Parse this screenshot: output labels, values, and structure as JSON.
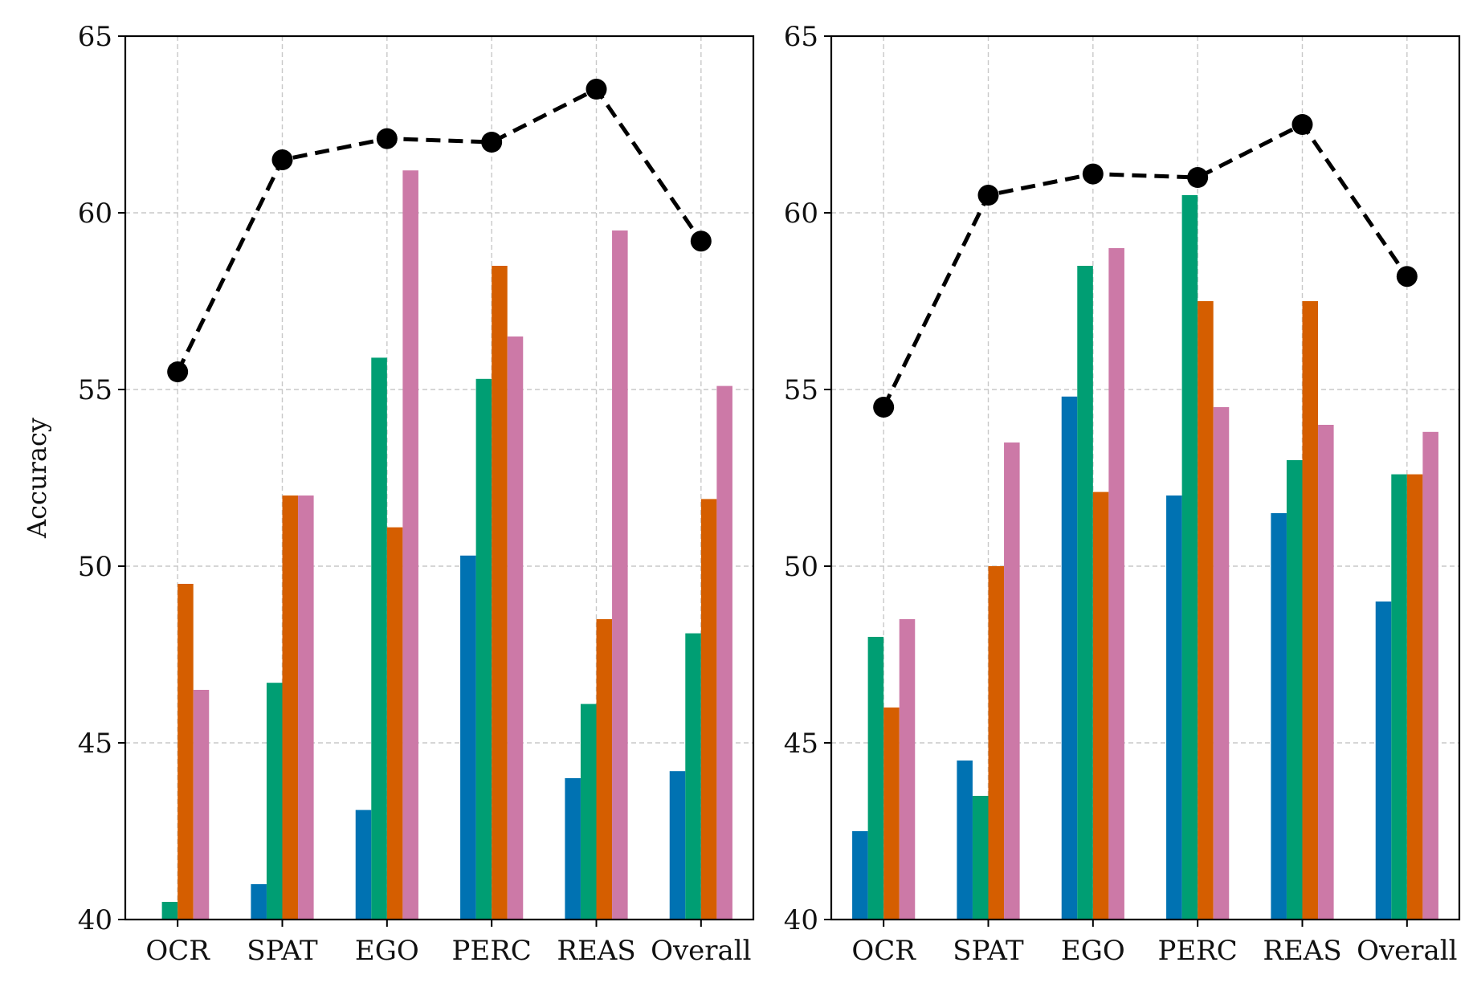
{
  "colors": {
    "series": [
      "#0072B2",
      "#009E73",
      "#D55E00",
      "#CC79A7"
    ],
    "line": "#000000",
    "grid": "#c8c8c8"
  },
  "chart_data": [
    {
      "type": "bar",
      "title": "",
      "xlabel": "",
      "ylabel": "Accuracy",
      "ylim": [
        40,
        65
      ],
      "yticks": [
        40,
        45,
        50,
        55,
        60,
        65
      ],
      "grid": true,
      "categories": [
        "OCR",
        "SPAT",
        "EGO",
        "PERC",
        "REAS",
        "Overall"
      ],
      "series": [
        {
          "values": [
            39.8,
            41.0,
            43.1,
            50.3,
            44.0,
            44.2
          ]
        },
        {
          "values": [
            40.5,
            46.7,
            55.9,
            55.3,
            46.1,
            48.1
          ]
        },
        {
          "values": [
            49.5,
            52.0,
            51.1,
            58.5,
            48.5,
            51.9
          ]
        },
        {
          "values": [
            46.5,
            52.0,
            61.2,
            56.5,
            59.5,
            55.1
          ]
        }
      ],
      "line_series": {
        "style": "dashed",
        "marker": "circle",
        "values": [
          55.5,
          61.5,
          62.1,
          62.0,
          63.5,
          59.2
        ]
      }
    },
    {
      "type": "bar",
      "title": "",
      "xlabel": "",
      "ylabel": "",
      "ylim": [
        40,
        65
      ],
      "yticks": [
        40,
        45,
        50,
        55,
        60,
        65
      ],
      "grid": true,
      "categories": [
        "OCR",
        "SPAT",
        "EGO",
        "PERC",
        "REAS",
        "Overall"
      ],
      "series": [
        {
          "values": [
            42.5,
            44.5,
            54.8,
            52.0,
            51.5,
            49.0
          ]
        },
        {
          "values": [
            48.0,
            43.5,
            58.5,
            60.5,
            53.0,
            52.6
          ]
        },
        {
          "values": [
            46.0,
            50.0,
            52.1,
            57.5,
            57.5,
            52.6
          ]
        },
        {
          "values": [
            48.5,
            53.5,
            59.0,
            54.5,
            54.0,
            53.8
          ]
        }
      ],
      "line_series": {
        "style": "dashed",
        "marker": "circle",
        "values": [
          54.5,
          60.5,
          61.1,
          61.0,
          62.5,
          58.2
        ]
      }
    }
  ]
}
